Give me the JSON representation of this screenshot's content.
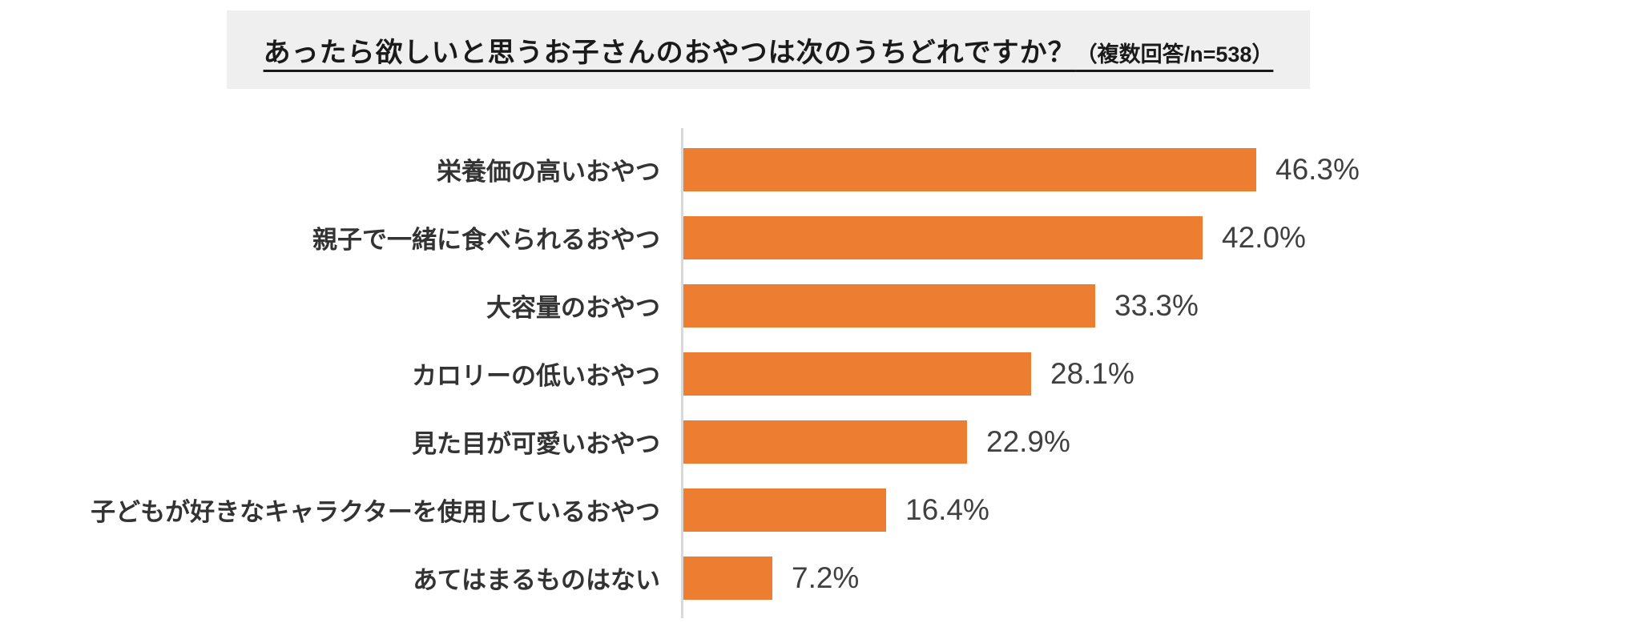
{
  "title": {
    "main": "あったら欲しいと思うお子さんのおやつは次のうちどれですか？",
    "note": "（複数回答/n=538）"
  },
  "chart_data": {
    "type": "bar",
    "orientation": "horizontal",
    "title": "あったら欲しいと思うお子さんのおやつは次のうちどれですか？（複数回答/n=538）",
    "categories": [
      "栄養価の高いおやつ",
      "親子で一緒に食べられるおやつ",
      "大容量のおやつ",
      "カロリーの低いおやつ",
      "見た目が可愛いおやつ",
      "子どもが好きなキャラクターを使用しているおやつ",
      "あてはまるものはない"
    ],
    "values": [
      46.3,
      42.0,
      33.3,
      28.1,
      22.9,
      16.4,
      7.2
    ],
    "value_labels": [
      "46.3%",
      "42.0%",
      "33.3%",
      "28.1%",
      "22.9%",
      "16.4%",
      "7.2%"
    ],
    "xlabel": "",
    "ylabel": "",
    "xlim": [
      0,
      50
    ],
    "grid": false,
    "legend": false,
    "bar_color": "#ed7d31",
    "category_label_color": "#333333",
    "value_label_color": "#404040",
    "axis_line_color": "#d9d9d9",
    "title_background": "#efefef"
  }
}
